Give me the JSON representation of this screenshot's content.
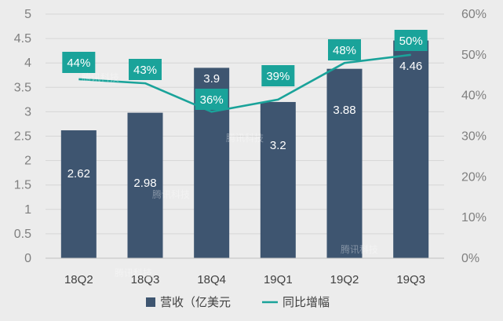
{
  "chart_data": {
    "type": "bar",
    "categories": [
      "18Q2",
      "18Q3",
      "18Q4",
      "19Q1",
      "19Q2",
      "19Q3"
    ],
    "series": [
      {
        "name": "营收（亿美元",
        "kind": "bar",
        "axis": "left",
        "values": [
          2.62,
          2.98,
          3.9,
          3.2,
          3.88,
          4.46
        ],
        "labels": [
          "2.62",
          "2.98",
          "3.9",
          "3.2",
          "3.88",
          "4.46"
        ],
        "color": "#3e5570"
      },
      {
        "name": "同比增幅",
        "kind": "line",
        "axis": "right",
        "values": [
          44,
          43,
          36,
          39,
          48,
          50
        ],
        "labels": [
          "44%",
          "43%",
          "36%",
          "39%",
          "48%",
          "50%"
        ],
        "color": "#1aa39a"
      }
    ],
    "y_left": {
      "range": [
        0,
        5
      ],
      "ticks": [
        0,
        0.5,
        1,
        1.5,
        2,
        2.5,
        3,
        3.5,
        4,
        4.5,
        5
      ],
      "tick_labels": [
        "0",
        "0.5",
        "1",
        "1.5",
        "2",
        "2.5",
        "3",
        "3.5",
        "4",
        "4.5",
        "5"
      ]
    },
    "y_right": {
      "range": [
        0,
        60
      ],
      "ticks": [
        0,
        10,
        20,
        30,
        40,
        50,
        60
      ],
      "tick_labels": [
        "0%",
        "10%",
        "20%",
        "30%",
        "40%",
        "50%",
        "60%"
      ]
    },
    "grid": true,
    "legend": {
      "position": "bottom"
    },
    "watermark": "腾讯科技"
  }
}
